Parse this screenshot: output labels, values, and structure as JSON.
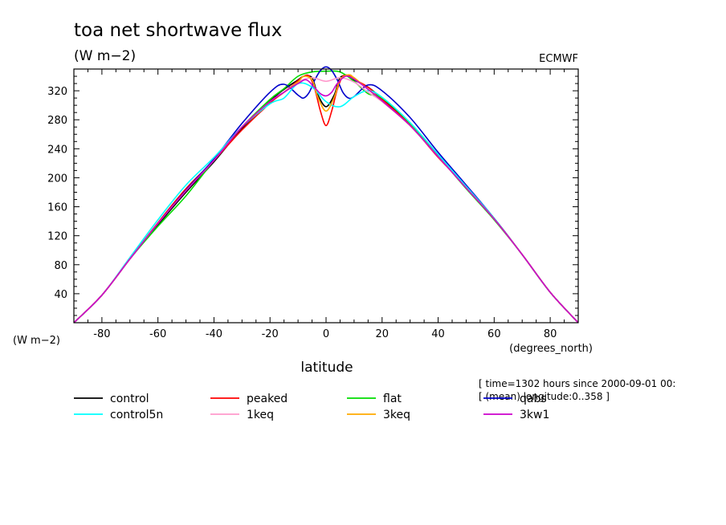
{
  "chart_data": {
    "type": "line",
    "title": "toa net shortwave flux",
    "subtitle": "(W m−2)",
    "source_label": "ECMWF",
    "ylabel": "(W m−2)",
    "xlabel": "latitude",
    "xunit_label": "(degrees_north)",
    "xlim": [
      -90,
      90
    ],
    "ylim": [
      0,
      350
    ],
    "xticks": [
      -80,
      -60,
      -40,
      -20,
      0,
      20,
      40,
      60,
      80
    ],
    "yticks": [
      40,
      80,
      120,
      160,
      200,
      240,
      280,
      320
    ],
    "grid": false,
    "legend_position": "bottom",
    "info_lines": [
      "[ time=1302 hours since 2000-09-01 00:",
      "[ (mean) longitude:0..358 ]"
    ],
    "series": [
      {
        "name": "control",
        "color": "#000000",
        "x": [
          -90,
          -80,
          -70,
          -60,
          -50,
          -40,
          -30,
          -20,
          -15,
          -10,
          -8,
          -5,
          -3,
          0,
          3,
          5,
          8,
          10,
          15,
          20,
          30,
          40,
          50,
          60,
          70,
          80,
          90
        ],
        "y": [
          0,
          38,
          88,
          135,
          180,
          222,
          268,
          306,
          322,
          335,
          340,
          338,
          315,
          298,
          315,
          338,
          340,
          335,
          325,
          309,
          274,
          231,
          188,
          144,
          94,
          42,
          0
        ]
      },
      {
        "name": "peaked",
        "color": "#ff0000",
        "x": [
          -90,
          -80,
          -70,
          -60,
          -50,
          -40,
          -30,
          -20,
          -15,
          -10,
          -8,
          -6,
          -4,
          -2,
          0,
          2,
          4,
          6,
          8,
          10,
          15,
          20,
          30,
          40,
          50,
          60,
          70,
          80,
          90
        ],
        "y": [
          0,
          38,
          88,
          138,
          185,
          224,
          266,
          303,
          318,
          334,
          340,
          340,
          322,
          292,
          272,
          292,
          322,
          340,
          341,
          336,
          325,
          308,
          273,
          228,
          188,
          144,
          94,
          42,
          0
        ]
      },
      {
        "name": "flat",
        "color": "#00dd00",
        "x": [
          -90,
          -80,
          -70,
          -60,
          -50,
          -40,
          -30,
          -20,
          -15,
          -10,
          -5,
          0,
          5,
          10,
          15,
          20,
          30,
          40,
          50,
          60,
          70,
          80,
          90
        ],
        "y": [
          0,
          38,
          88,
          133,
          175,
          224,
          270,
          308,
          323,
          340,
          346,
          347,
          346,
          333,
          316,
          310,
          275,
          230,
          185,
          142,
          94,
          42,
          0
        ]
      },
      {
        "name": "qabs",
        "color": "#0000cc",
        "x": [
          -90,
          -80,
          -70,
          -60,
          -50,
          -40,
          -30,
          -20,
          -15,
          -10,
          -8,
          -6,
          -4,
          -2,
          0,
          2,
          4,
          6,
          8,
          10,
          15,
          20,
          30,
          40,
          50,
          60,
          70,
          80,
          90
        ],
        "y": [
          0,
          38,
          88,
          137,
          183,
          226,
          275,
          318,
          329,
          314,
          310,
          318,
          335,
          348,
          353,
          348,
          335,
          318,
          310,
          312,
          328,
          320,
          283,
          235,
          190,
          144,
          94,
          42,
          0
        ]
      },
      {
        "name": "control5n",
        "color": "#00ffff",
        "x": [
          -90,
          -80,
          -70,
          -60,
          -50,
          -40,
          -30,
          -20,
          -15,
          -10,
          -5,
          0,
          5,
          10,
          15,
          20,
          30,
          40,
          50,
          60,
          70,
          80,
          90
        ],
        "y": [
          0,
          38,
          90,
          142,
          190,
          228,
          270,
          302,
          310,
          330,
          325,
          305,
          298,
          312,
          320,
          311,
          276,
          232,
          188,
          144,
          94,
          42,
          0
        ]
      },
      {
        "name": "1keq",
        "color": "#ff99cc",
        "x": [
          -90,
          -80,
          -70,
          -60,
          -50,
          -40,
          -30,
          -20,
          -15,
          -10,
          -5,
          0,
          5,
          10,
          15,
          20,
          30,
          40,
          50,
          60,
          70,
          80,
          90
        ],
        "y": [
          0,
          38,
          88,
          137,
          182,
          224,
          270,
          305,
          318,
          332,
          338,
          333,
          338,
          332,
          318,
          305,
          272,
          229,
          186,
          143,
          94,
          42,
          0
        ]
      },
      {
        "name": "3keq",
        "color": "#ffaa00",
        "x": [
          -90,
          -80,
          -70,
          -60,
          -50,
          -40,
          -30,
          -20,
          -15,
          -10,
          -8,
          -5,
          -3,
          0,
          3,
          5,
          8,
          10,
          15,
          20,
          30,
          40,
          50,
          60,
          70,
          80,
          90
        ],
        "y": [
          0,
          38,
          88,
          137,
          182,
          224,
          270,
          305,
          318,
          332,
          340,
          335,
          312,
          292,
          312,
          335,
          342,
          338,
          322,
          306,
          272,
          229,
          186,
          143,
          94,
          42,
          0
        ]
      },
      {
        "name": "3kw1",
        "color": "#cc00cc",
        "x": [
          -90,
          -80,
          -70,
          -60,
          -50,
          -40,
          -30,
          -20,
          -15,
          -10,
          -7,
          -4,
          -2,
          0,
          2,
          4,
          7,
          10,
          15,
          20,
          30,
          40,
          50,
          60,
          70,
          80,
          90
        ],
        "y": [
          0,
          38,
          88,
          137,
          182,
          224,
          270,
          305,
          318,
          330,
          335,
          324,
          316,
          313,
          318,
          330,
          340,
          336,
          322,
          306,
          272,
          229,
          186,
          143,
          94,
          42,
          0
        ]
      }
    ]
  }
}
